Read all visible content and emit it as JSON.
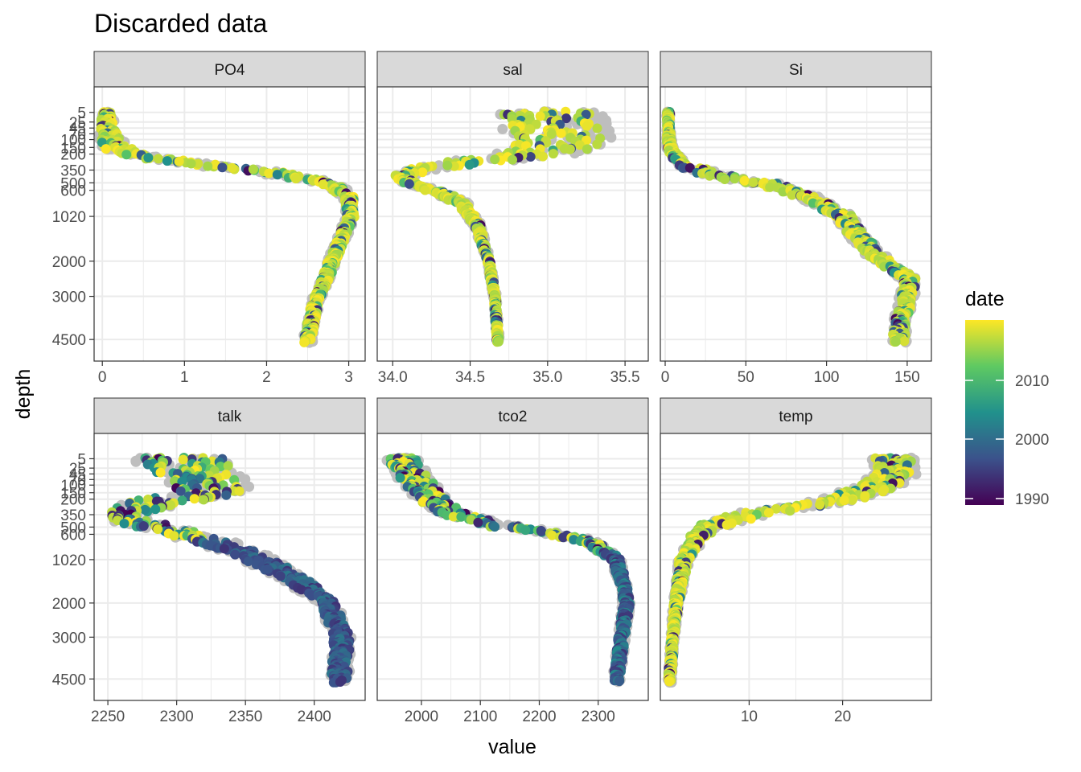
{
  "chart_data": {
    "type": "scatter",
    "title": "Discarded data",
    "xlabel": "value",
    "ylabel": "depth",
    "y_scale": "reversed, sqrt",
    "y_ticks": [
      5,
      25,
      45,
      70,
      100,
      150,
      200,
      350,
      500,
      600,
      1020,
      2000,
      3000,
      4500
    ],
    "y_range": [
      0,
      4650
    ],
    "grid": true,
    "background_points_color": "#bebebe",
    "legend": {
      "title": "date",
      "placement": "right",
      "ticks": [
        "1990",
        "2000",
        "2010"
      ],
      "colormap": [
        "#440154",
        "#3b528b",
        "#21918c",
        "#5ec962",
        "#fde725"
      ]
    },
    "panels": [
      {
        "name": "PO4",
        "x_ticks": [
          "0",
          "1",
          "2",
          "3"
        ],
        "x_tick_values": [
          0,
          1,
          2,
          3
        ],
        "x_range": [
          -0.1,
          3.2
        ],
        "profile": [
          [
            0.05,
            5
          ],
          [
            0.06,
            25
          ],
          [
            0.08,
            70
          ],
          [
            0.15,
            150
          ],
          [
            0.5,
            220
          ],
          [
            1.2,
            290
          ],
          [
            2.0,
            370
          ],
          [
            2.6,
            470
          ],
          [
            2.85,
            560
          ],
          [
            3.0,
            700
          ],
          [
            3.02,
            1020
          ],
          [
            2.9,
            1500
          ],
          [
            2.8,
            2000
          ],
          [
            2.62,
            3000
          ],
          [
            2.53,
            4000
          ],
          [
            2.5,
            4600
          ]
        ],
        "spread": [
          0.05,
          0.08,
          0.1,
          0.15,
          0.12,
          0.12,
          0.12,
          0.1,
          0.08,
          0.06,
          0.05,
          0.05,
          0.05,
          0.05,
          0.05,
          0.05
        ]
      },
      {
        "name": "sal",
        "x_ticks": [
          "34.0",
          "34.5",
          "35.0",
          "35.5"
        ],
        "x_tick_values": [
          34.0,
          34.5,
          35.0,
          35.5
        ],
        "x_range": [
          33.9,
          35.65
        ],
        "profile": [
          [
            35.0,
            5
          ],
          [
            35.05,
            45
          ],
          [
            35.1,
            100
          ],
          [
            35.0,
            180
          ],
          [
            34.6,
            250
          ],
          [
            34.2,
            330
          ],
          [
            34.05,
            420
          ],
          [
            34.12,
            520
          ],
          [
            34.3,
            620
          ],
          [
            34.45,
            800
          ],
          [
            34.55,
            1200
          ],
          [
            34.62,
            2000
          ],
          [
            34.66,
            3000
          ],
          [
            34.68,
            4600
          ]
        ],
        "spread": [
          0.3,
          0.3,
          0.28,
          0.25,
          0.15,
          0.08,
          0.04,
          0.04,
          0.04,
          0.03,
          0.02,
          0.01,
          0.01,
          0.01
        ]
      },
      {
        "name": "Si",
        "x_ticks": [
          "0",
          "50",
          "100",
          "150"
        ],
        "x_tick_values": [
          0,
          50,
          100,
          150
        ],
        "x_range": [
          -3,
          165
        ],
        "profile": [
          [
            2,
            5
          ],
          [
            2,
            45
          ],
          [
            3,
            150
          ],
          [
            10,
            300
          ],
          [
            35,
            420
          ],
          [
            65,
            520
          ],
          [
            90,
            700
          ],
          [
            110,
            1000
          ],
          [
            122,
            1500
          ],
          [
            135,
            2000
          ],
          [
            152,
            2500
          ],
          [
            150,
            3000
          ],
          [
            145,
            4000
          ],
          [
            145,
            4600
          ]
        ],
        "spread": [
          1,
          1,
          2,
          4,
          6,
          5,
          5,
          5,
          5,
          5,
          4,
          4,
          4,
          4
        ]
      },
      {
        "name": "talk",
        "x_ticks": [
          "2250",
          "2300",
          "2350",
          "2400"
        ],
        "x_tick_values": [
          2250,
          2300,
          2350,
          2400
        ],
        "x_range": [
          2240,
          2437
        ],
        "profile": [
          [
            2305,
            5
          ],
          [
            2315,
            45
          ],
          [
            2325,
            110
          ],
          [
            2320,
            160
          ],
          [
            2285,
            230
          ],
          [
            2260,
            330
          ],
          [
            2270,
            440
          ],
          [
            2300,
            560
          ],
          [
            2330,
            720
          ],
          [
            2360,
            1020
          ],
          [
            2390,
            1500
          ],
          [
            2410,
            2000
          ],
          [
            2420,
            3000
          ],
          [
            2418,
            4600
          ]
        ],
        "spread": [
          30,
          28,
          25,
          25,
          20,
          10,
          12,
          12,
          12,
          10,
          8,
          6,
          6,
          6
        ]
      },
      {
        "name": "tco2",
        "x_ticks": [
          "2000",
          "2100",
          "2200",
          "2300"
        ],
        "x_tick_values": [
          2000,
          2100,
          2200,
          2300
        ],
        "x_range": [
          1925,
          2385
        ],
        "profile": [
          [
            1970,
            5
          ],
          [
            1990,
            70
          ],
          [
            2015,
            180
          ],
          [
            2050,
            330
          ],
          [
            2120,
            470
          ],
          [
            2220,
            580
          ],
          [
            2290,
            720
          ],
          [
            2330,
            1020
          ],
          [
            2345,
            1600
          ],
          [
            2348,
            2000
          ],
          [
            2340,
            3000
          ],
          [
            2330,
            4600
          ]
        ],
        "spread": [
          25,
          25,
          25,
          20,
          18,
          15,
          12,
          8,
          6,
          6,
          6,
          6
        ]
      },
      {
        "name": "temp",
        "x_ticks": [
          "10",
          "20"
        ],
        "x_tick_values": [
          10,
          20
        ],
        "x_range": [
          0.5,
          29.5
        ],
        "profile": [
          [
            25.5,
            5
          ],
          [
            25.5,
            45
          ],
          [
            24,
            100
          ],
          [
            21,
            180
          ],
          [
            15,
            270
          ],
          [
            10,
            350
          ],
          [
            6,
            480
          ],
          [
            4.5,
            620
          ],
          [
            3,
            1020
          ],
          [
            2.2,
            2000
          ],
          [
            1.8,
            3000
          ],
          [
            1.5,
            4600
          ]
        ],
        "spread": [
          2,
          2,
          2,
          2,
          2,
          1.5,
          1.2,
          0.8,
          0.5,
          0.3,
          0.2,
          0.2
        ]
      }
    ]
  }
}
